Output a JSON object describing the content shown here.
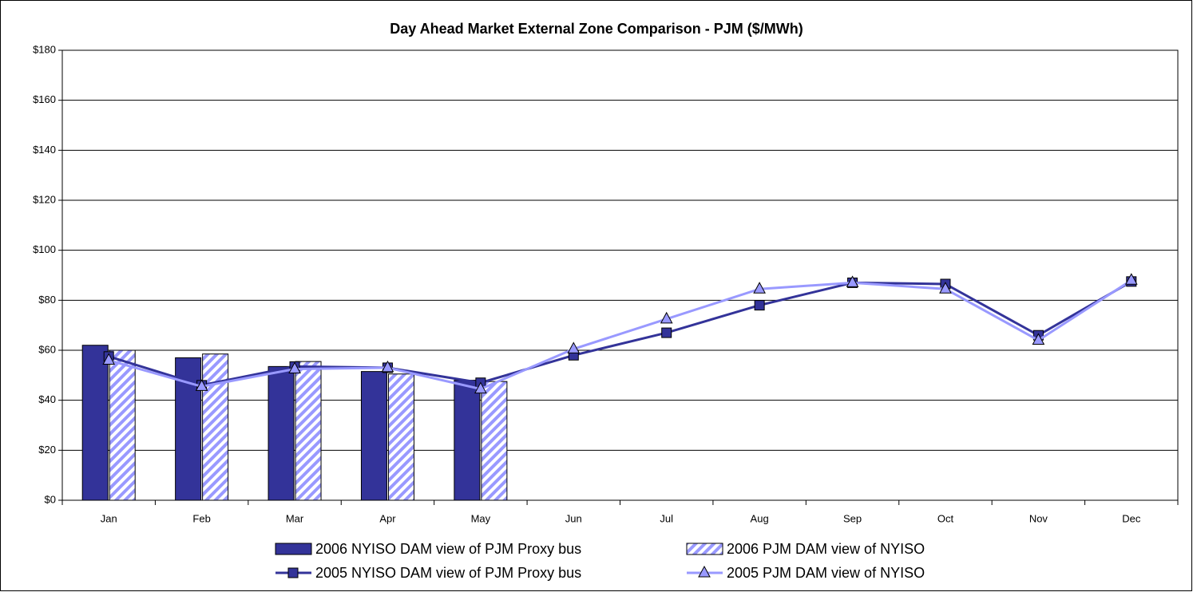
{
  "chart_data": {
    "type": "bar",
    "title": "Day Ahead Market External Zone Comparison - PJM ($/MWh)",
    "categories": [
      "Jan",
      "Feb",
      "Mar",
      "Apr",
      "May",
      "Jun",
      "Jul",
      "Aug",
      "Sep",
      "Oct",
      "Nov",
      "Dec"
    ],
    "series": [
      {
        "name": "2006 NYISO DAM view of PJM Proxy bus",
        "type": "bar",
        "color": "#333399",
        "pattern": "solid",
        "values": [
          62,
          57,
          53.5,
          51.5,
          48,
          null,
          null,
          null,
          null,
          null,
          null,
          null
        ]
      },
      {
        "name": "2006 PJM DAM view of NYISO",
        "type": "bar",
        "color": "#9999ff",
        "pattern": "hatch",
        "values": [
          60,
          58.5,
          55.5,
          50.5,
          47.5,
          null,
          null,
          null,
          null,
          null,
          null,
          null
        ]
      },
      {
        "name": "2005 NYISO DAM view of PJM Proxy bus",
        "type": "line",
        "color": "#333399",
        "marker": "square",
        "values": [
          57.5,
          46,
          53.5,
          53,
          47,
          58,
          67,
          78,
          87,
          86.5,
          66,
          87.5
        ]
      },
      {
        "name": "2005 PJM DAM view of NYISO",
        "type": "line",
        "color": "#9999ff",
        "marker": "triangle",
        "values": [
          56,
          45.5,
          52.5,
          53,
          44.5,
          60.5,
          72.5,
          84.5,
          87,
          84.5,
          64,
          88
        ]
      }
    ],
    "ylim": [
      0,
      180
    ],
    "yticks": [
      {
        "value": 0,
        "label": "$0"
      },
      {
        "value": 20,
        "label": "$20"
      },
      {
        "value": 40,
        "label": "$40"
      },
      {
        "value": 60,
        "label": "$60"
      },
      {
        "value": 80,
        "label": "$80"
      },
      {
        "value": 100,
        "label": "$100"
      },
      {
        "value": 120,
        "label": "$120"
      },
      {
        "value": 140,
        "label": "$140"
      },
      {
        "value": 160,
        "label": "$160"
      },
      {
        "value": 180,
        "label": "$180"
      }
    ],
    "grid": true,
    "legend": "bottom"
  }
}
